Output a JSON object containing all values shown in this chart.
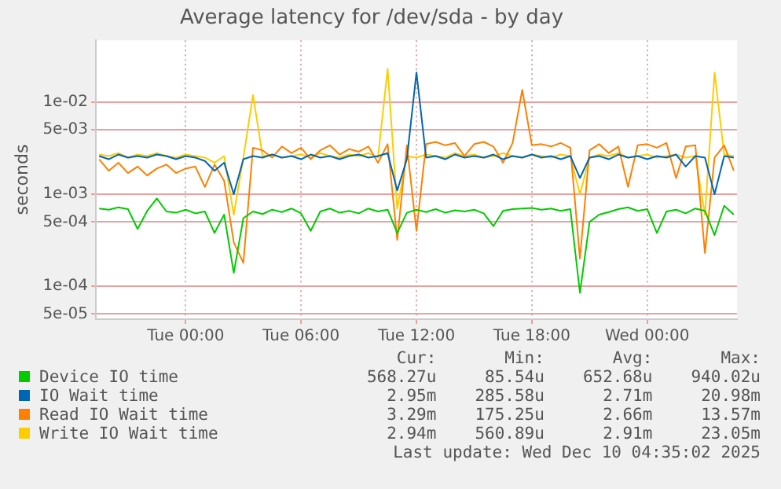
{
  "chart_data": {
    "type": "line",
    "title": "Average latency for /dev/sda - by day",
    "ylabel": "seconds",
    "x": [
      "2025-12-08T19:30",
      "2025-12-08T20:00",
      "2025-12-08T20:30",
      "2025-12-08T21:00",
      "2025-12-08T21:30",
      "2025-12-08T22:00",
      "2025-12-08T22:30",
      "2025-12-08T23:00",
      "2025-12-08T23:30",
      "2025-12-09T00:00",
      "2025-12-09T00:30",
      "2025-12-09T01:00",
      "2025-12-09T01:30",
      "2025-12-09T02:00",
      "2025-12-09T02:30",
      "2025-12-09T03:00",
      "2025-12-09T03:30",
      "2025-12-09T04:00",
      "2025-12-09T04:30",
      "2025-12-09T05:00",
      "2025-12-09T05:30",
      "2025-12-09T06:00",
      "2025-12-09T06:30",
      "2025-12-09T07:00",
      "2025-12-09T07:30",
      "2025-12-09T08:00",
      "2025-12-09T08:30",
      "2025-12-09T09:00",
      "2025-12-09T09:30",
      "2025-12-09T10:00",
      "2025-12-09T10:30",
      "2025-12-09T11:00",
      "2025-12-09T11:30",
      "2025-12-09T12:00",
      "2025-12-09T12:30",
      "2025-12-09T13:00",
      "2025-12-09T13:30",
      "2025-12-09T14:00",
      "2025-12-09T14:30",
      "2025-12-09T15:00",
      "2025-12-09T15:30",
      "2025-12-09T16:00",
      "2025-12-09T16:30",
      "2025-12-09T17:00",
      "2025-12-09T17:30",
      "2025-12-09T18:00",
      "2025-12-09T18:30",
      "2025-12-09T19:00",
      "2025-12-09T19:30",
      "2025-12-09T20:00",
      "2025-12-09T20:30",
      "2025-12-09T21:00",
      "2025-12-09T21:30",
      "2025-12-09T22:00",
      "2025-12-09T22:30",
      "2025-12-09T23:00",
      "2025-12-09T23:30",
      "2025-12-10T00:00",
      "2025-12-10T00:30",
      "2025-12-10T01:00",
      "2025-12-10T01:30",
      "2025-12-10T02:00",
      "2025-12-10T02:30",
      "2025-12-10T03:00",
      "2025-12-10T03:30",
      "2025-12-10T04:00",
      "2025-12-10T04:30"
    ],
    "xlim": [
      "2025-12-08T19:20",
      "2025-12-10T04:40"
    ],
    "xticks": [
      {
        "value": "2025-12-09T00:00",
        "label": "Tue 00:00"
      },
      {
        "value": "2025-12-09T06:00",
        "label": "Tue 06:00"
      },
      {
        "value": "2025-12-09T12:00",
        "label": "Tue 12:00"
      },
      {
        "value": "2025-12-09T18:00",
        "label": "Tue 18:00"
      },
      {
        "value": "2025-12-10T00:00",
        "label": "Wed 00:00"
      }
    ],
    "log": "y",
    "ylim": [
      4.4e-05,
      0.047
    ],
    "yticks": [
      {
        "value": 5e-05,
        "label": "5e-05"
      },
      {
        "value": 0.0001,
        "label": "1e-04"
      },
      {
        "value": 0.0005,
        "label": "5e-04"
      },
      {
        "value": 0.001,
        "label": "1e-03"
      },
      {
        "value": 0.005,
        "label": "5e-03"
      },
      {
        "value": 0.01,
        "label": "1e-02"
      }
    ],
    "grid": true,
    "legend": "bottom",
    "series": [
      {
        "name": "Device IO time",
        "color": "#00cc00",
        "values": [
          0.0007,
          0.00068,
          0.00072,
          0.00069,
          0.00042,
          0.00066,
          0.0009,
          0.00065,
          0.00063,
          0.00068,
          0.00062,
          0.00065,
          0.00038,
          0.0006,
          0.00014,
          0.00055,
          0.00065,
          0.00061,
          0.00068,
          0.00064,
          0.0007,
          0.00062,
          0.0004,
          0.00065,
          0.0007,
          0.00063,
          0.00066,
          0.00062,
          0.0007,
          0.00065,
          0.00068,
          0.00038,
          0.00063,
          0.00068,
          0.00064,
          0.00069,
          0.00063,
          0.00067,
          0.00065,
          0.00068,
          0.00062,
          0.00045,
          0.00066,
          0.00069,
          0.0007,
          0.00071,
          0.00068,
          0.0007,
          0.00066,
          0.00069,
          8.5e-05,
          0.0005,
          0.0006,
          0.00064,
          0.00069,
          0.00072,
          0.00066,
          0.00069,
          0.00038,
          0.00065,
          0.00068,
          0.00062,
          0.0007,
          0.00066,
          0.00036,
          0.00075,
          0.0006
        ]
      },
      {
        "name": "IO Wait time",
        "color": "#0066b3",
        "values": [
          0.0026,
          0.0024,
          0.0027,
          0.0025,
          0.0026,
          0.0025,
          0.0027,
          0.0026,
          0.0024,
          0.0026,
          0.0025,
          0.0023,
          0.0018,
          0.0022,
          0.001,
          0.0024,
          0.0026,
          0.0025,
          0.0027,
          0.0025,
          0.0026,
          0.0024,
          0.0027,
          0.0025,
          0.0026,
          0.0024,
          0.0026,
          0.0027,
          0.0025,
          0.0026,
          0.0028,
          0.0011,
          0.0024,
          0.021,
          0.0025,
          0.0026,
          0.0024,
          0.0027,
          0.0025,
          0.0026,
          0.0025,
          0.0027,
          0.0024,
          0.0026,
          0.0025,
          0.0027,
          0.0025,
          0.0026,
          0.0024,
          0.0026,
          0.0015,
          0.0025,
          0.0026,
          0.0024,
          0.0027,
          0.0025,
          0.0026,
          0.0024,
          0.0026,
          0.0025,
          0.0027,
          0.002,
          0.0026,
          0.0025,
          0.001,
          0.0026,
          0.0025
        ]
      },
      {
        "name": "Read IO Wait time",
        "color": "#ff8000",
        "values": [
          0.0024,
          0.0018,
          0.0022,
          0.0017,
          0.002,
          0.0016,
          0.0019,
          0.0021,
          0.0017,
          0.0019,
          0.002,
          0.0012,
          0.0021,
          0.0014,
          0.0003,
          0.00018,
          0.0032,
          0.003,
          0.0025,
          0.0033,
          0.0028,
          0.0032,
          0.0024,
          0.003,
          0.0034,
          0.0027,
          0.0031,
          0.0029,
          0.0033,
          0.0022,
          0.0035,
          0.00032,
          0.0034,
          0.0004,
          0.0035,
          0.0037,
          0.0034,
          0.0036,
          0.0026,
          0.0035,
          0.0037,
          0.0033,
          0.0022,
          0.0036,
          0.0136,
          0.0034,
          0.0035,
          0.0033,
          0.0036,
          0.0032,
          0.0002,
          0.003,
          0.0035,
          0.0028,
          0.0033,
          0.0012,
          0.0034,
          0.0035,
          0.0032,
          0.0036,
          0.0015,
          0.0033,
          0.0034,
          0.00023,
          0.0025,
          0.0034,
          0.0018
        ]
      },
      {
        "name": "Write IO Wait time",
        "color": "#ffcc00",
        "values": [
          0.0027,
          0.0026,
          0.0028,
          0.0025,
          0.0027,
          0.0026,
          0.0028,
          0.0026,
          0.0025,
          0.0027,
          0.0026,
          0.0025,
          0.0022,
          0.0026,
          0.0006,
          0.0025,
          0.012,
          0.0026,
          0.0027,
          0.0025,
          0.0026,
          0.0027,
          0.0025,
          0.0028,
          0.0026,
          0.0025,
          0.0027,
          0.0026,
          0.0028,
          0.0025,
          0.023,
          0.0007,
          0.0026,
          0.0025,
          0.0027,
          0.0026,
          0.0025,
          0.0028,
          0.0026,
          0.0027,
          0.0025,
          0.0026,
          0.0028,
          0.0026,
          0.0025,
          0.0027,
          0.0026,
          0.0025,
          0.0027,
          0.0026,
          0.001,
          0.0025,
          0.0027,
          0.0026,
          0.0028,
          0.0025,
          0.0026,
          0.0027,
          0.0025,
          0.0026,
          0.0027,
          0.0025,
          0.0026,
          0.0006,
          0.021,
          0.0027,
          0.0026
        ]
      }
    ],
    "annotations": [
      "Cur:",
      "Min:",
      "Avg:",
      "Max:",
      "568.27u",
      "85.54u",
      "652.68u",
      "940.02u",
      "2.95m",
      "285.58u",
      "2.71m",
      "20.98m",
      "3.29m",
      "175.25u",
      "2.66m",
      "13.57m",
      "2.94m",
      "560.89u",
      "2.91m",
      "23.05m",
      "Last update: Wed Dec 10 04:35:02 2025"
    ]
  }
}
